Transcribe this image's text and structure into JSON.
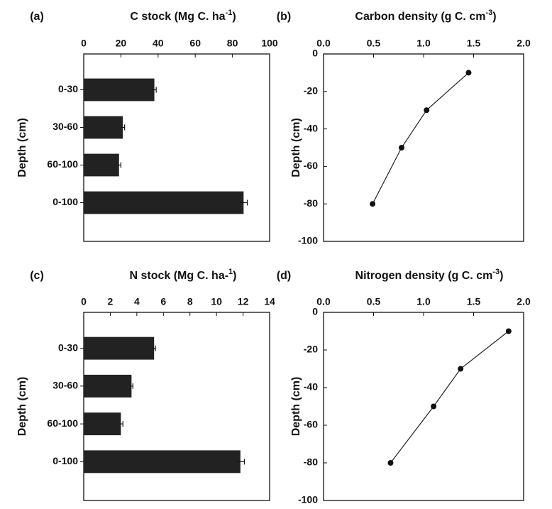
{
  "chart_data": [
    {
      "id": "a",
      "type": "bar",
      "orientation": "horizontal",
      "panel_label": "(a)",
      "title": "C stock (Mg C. ha",
      "title_sup": "-1",
      "title_end": ")",
      "ylabel": "Depth (cm)",
      "categories": [
        "0-30",
        "30-60",
        "60-100",
        "0-100"
      ],
      "values": [
        38,
        21,
        19,
        86
      ],
      "errors": [
        1,
        1,
        1,
        2
      ],
      "xlim": [
        0,
        100
      ],
      "xticks": [
        0,
        20,
        40,
        60,
        80,
        100
      ],
      "xtick_labels": [
        "0",
        "20",
        "40",
        "60",
        "80",
        "100"
      ],
      "xaxis_position": "top",
      "grid": false
    },
    {
      "id": "b",
      "type": "line",
      "panel_label": "(b)",
      "title": "Carbon density (g C. cm",
      "title_sup": "-3",
      "title_end": ")",
      "ylabel": "Depth (cm)",
      "x": [
        1.45,
        1.03,
        0.78,
        0.49
      ],
      "y": [
        -10,
        -30,
        -50,
        -80
      ],
      "xlim": [
        0,
        2.0
      ],
      "ylim": [
        -100,
        0
      ],
      "xticks": [
        0,
        0.5,
        1.0,
        1.5,
        2.0
      ],
      "xtick_labels": [
        "0.0",
        "0.5",
        "1.0",
        "1.5",
        "2.0"
      ],
      "yticks": [
        0,
        -20,
        -40,
        -60,
        -80,
        -100
      ],
      "ytick_labels": [
        "0",
        "-20",
        "-40",
        "-60",
        "-80",
        "-100"
      ],
      "xaxis_position": "top",
      "grid": false
    },
    {
      "id": "c",
      "type": "bar",
      "orientation": "horizontal",
      "panel_label": "(c)",
      "title": "N stock (Mg C. ha-",
      "title_sup": "1",
      "title_end": ")",
      "ylabel": "Depth (cm)",
      "categories": [
        "0-30",
        "30-60",
        "60-100",
        "0-100"
      ],
      "values": [
        5.3,
        3.6,
        2.8,
        11.8
      ],
      "errors": [
        0.1,
        0.1,
        0.15,
        0.3
      ],
      "xlim": [
        0,
        14
      ],
      "xticks": [
        0,
        2,
        4,
        6,
        8,
        10,
        12,
        14
      ],
      "xtick_labels": [
        "0",
        "2",
        "4",
        "6",
        "8",
        "10",
        "12",
        "14"
      ],
      "xaxis_position": "top",
      "grid": false
    },
    {
      "id": "d",
      "type": "line",
      "panel_label": "(d)",
      "title": "Nitrogen density (g C. cm",
      "title_sup": "-3",
      "title_end": ")",
      "ylabel": "Depth (cm)",
      "x": [
        1.85,
        1.37,
        1.1,
        0.67
      ],
      "y": [
        -10,
        -30,
        -50,
        -80
      ],
      "xlim": [
        0,
        2.0
      ],
      "ylim": [
        -100,
        0
      ],
      "xticks": [
        0,
        0.5,
        1.0,
        1.5,
        2.0
      ],
      "xtick_labels": [
        "0.0",
        "0.5",
        "1.0",
        "1.5",
        "2.0"
      ],
      "yticks": [
        0,
        -20,
        -40,
        -60,
        -80,
        -100
      ],
      "ytick_labels": [
        "0",
        "-20",
        "-40",
        "-60",
        "-80",
        "-100"
      ],
      "xaxis_position": "top",
      "grid": false
    }
  ]
}
